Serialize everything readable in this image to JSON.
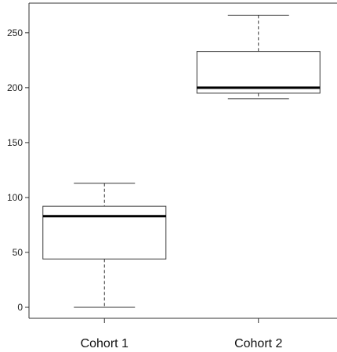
{
  "chart_data": {
    "type": "box",
    "title": "",
    "xlabel": "",
    "ylabel": "",
    "categories": [
      "Cohort 1",
      "Cohort 2"
    ],
    "ylim": [
      -10,
      277
    ],
    "yticks": [
      0,
      50,
      100,
      150,
      200,
      250
    ],
    "yticklabels": [
      "0",
      "50",
      "100",
      "150",
      "200",
      "250"
    ],
    "grid": false,
    "legend": "none",
    "boxes": [
      {
        "category": "Cohort 1",
        "min": 0,
        "q1": 44,
        "median": 83,
        "q3": 92,
        "max": 113
      },
      {
        "category": "Cohort 2",
        "min": 190,
        "q1": 195,
        "median": 200,
        "q3": 233,
        "max": 266
      }
    ],
    "colors": {
      "box_fill": "#ffffff",
      "stroke": "#333333",
      "median": "#000000"
    }
  }
}
